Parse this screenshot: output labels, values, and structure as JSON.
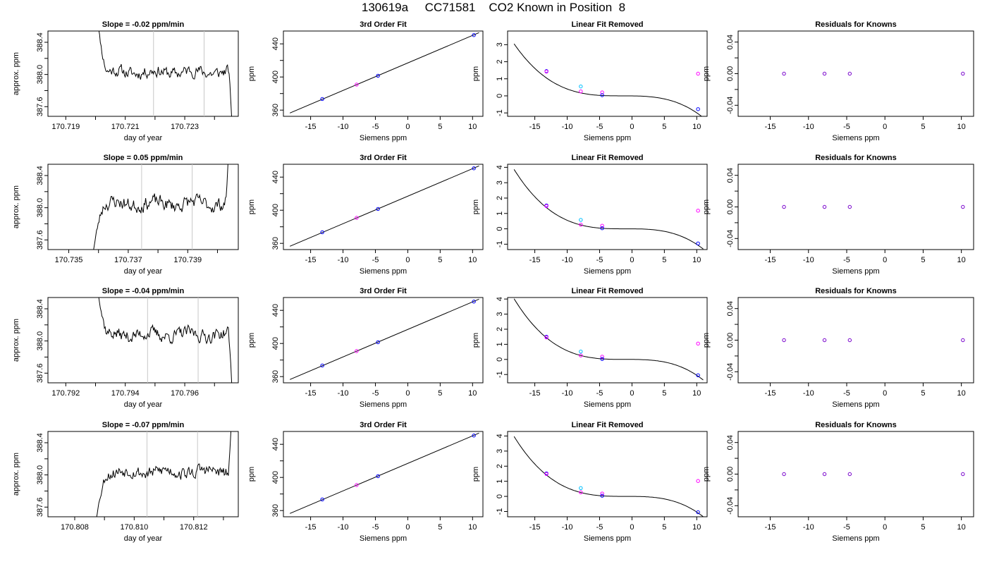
{
  "page": {
    "title": "130619a     CC71581    CO2 Known in Position  8"
  },
  "colors": {
    "line": "#000000",
    "vline": "#c8c8c8",
    "point_blue": "#0000ff",
    "point_magenta": "#ff00ff",
    "point_cyan": "#00bfff",
    "point_purple": "#7700cc"
  },
  "chart_data": [
    {
      "type": "line",
      "row": 0,
      "col": 0,
      "title": "Slope =  -0.02  ppm/min",
      "xlabel": "day of year",
      "ylabel": "approx. ppm",
      "xlim": [
        170.7184,
        170.7248
      ],
      "ylim": [
        387.48,
        388.54
      ],
      "xticks": [
        170.719,
        170.72,
        170.721,
        170.722,
        170.723,
        170.724
      ],
      "xticklabels": [
        "170.719",
        "",
        "170.721",
        "",
        "170.723",
        ""
      ],
      "yticks": [
        387.6,
        387.8,
        388.0,
        388.2,
        388.4
      ],
      "yticklabels": [
        "387.6",
        "",
        "388.0",
        "",
        "388.4"
      ],
      "vlines": [
        170.72195,
        170.72365
      ],
      "trace": {
        "x_start": 170.72,
        "x_end": 170.7246,
        "start_y": 388.9,
        "settle_y": 388.03,
        "end_y": 387.3,
        "seed": 11,
        "amp": 0.055
      }
    },
    {
      "type": "line",
      "row": 1,
      "col": 0,
      "title": "Slope =  0.05  ppm/min",
      "xlabel": "day of year",
      "ylabel": "approx. ppm",
      "xlim": [
        170.7343,
        170.7407
      ],
      "ylim": [
        387.48,
        388.54
      ],
      "xticks": [
        170.735,
        170.736,
        170.737,
        170.738,
        170.739,
        170.74
      ],
      "xticklabels": [
        "170.735",
        "",
        "170.737",
        "",
        "170.739",
        ""
      ],
      "yticks": [
        387.6,
        387.8,
        388.0,
        388.2,
        388.4
      ],
      "yticklabels": [
        "387.6",
        "",
        "388.0",
        "",
        "388.4"
      ],
      "vlines": [
        170.73745,
        170.73915
      ],
      "trace": {
        "x_start": 170.7358,
        "x_end": 170.7404,
        "start_y": 387.4,
        "settle_y": 388.05,
        "end_y": 388.9,
        "seed": 23,
        "amp": 0.065
      }
    },
    {
      "type": "line",
      "row": 2,
      "col": 0,
      "title": "Slope =  -0.04  ppm/min",
      "xlabel": "day of year",
      "ylabel": "approx. ppm",
      "xlim": [
        170.7914,
        170.7978
      ],
      "ylim": [
        387.48,
        388.54
      ],
      "xticks": [
        170.792,
        170.793,
        170.794,
        170.795,
        170.796,
        170.797
      ],
      "xticklabels": [
        "170.792",
        "",
        "170.794",
        "",
        "170.796",
        ""
      ],
      "yticks": [
        387.6,
        387.8,
        388.0,
        388.2,
        388.4
      ],
      "yticklabels": [
        "387.6",
        "",
        "388.0",
        "",
        "388.4"
      ],
      "vlines": [
        170.79475,
        170.79645
      ],
      "trace": {
        "x_start": 170.793,
        "x_end": 170.7976,
        "start_y": 388.9,
        "settle_y": 388.08,
        "end_y": 387.3,
        "seed": 37,
        "amp": 0.06
      }
    },
    {
      "type": "line",
      "row": 3,
      "col": 0,
      "title": "Slope =  -0.07  ppm/min",
      "xlabel": "day of year",
      "ylabel": "approx. ppm",
      "xlim": [
        170.8071,
        170.8135
      ],
      "ylim": [
        387.48,
        388.54
      ],
      "xticks": [
        170.808,
        170.809,
        170.81,
        170.811,
        170.812,
        170.813
      ],
      "xticklabels": [
        "170.808",
        "",
        "170.810",
        "",
        "170.812",
        ""
      ],
      "yticks": [
        387.6,
        387.8,
        388.0,
        388.2,
        388.4
      ],
      "yticklabels": [
        "387.6",
        "",
        "388.0",
        "",
        "388.4"
      ],
      "vlines": [
        170.81043,
        170.81213
      ],
      "trace": {
        "x_start": 170.8087,
        "x_end": 170.8133,
        "start_y": 387.4,
        "settle_y": 388.04,
        "end_y": 388.9,
        "seed": 53,
        "amp": 0.06
      }
    },
    {
      "type": "scatter",
      "row": 0,
      "col": 1,
      "title": "3rd Order Fit",
      "xlabel": "Siemens ppm",
      "ylabel": "ppm",
      "xlim": [
        -19.2,
        11.6
      ],
      "ylim": [
        352.5,
        455.5
      ],
      "xticks": [
        -15,
        -10,
        -5,
        0,
        5,
        10
      ],
      "xticklabels": [
        "-15",
        "-10",
        "-5",
        "0",
        "5",
        "10"
      ],
      "yticks": [
        360,
        380,
        400,
        420,
        440
      ],
      "yticklabels": [
        "360",
        "",
        "400",
        "",
        "440"
      ],
      "curve": {
        "x": [
          -18.2,
          11.0
        ],
        "y": [
          356.5,
          453.5
        ]
      },
      "points": [
        {
          "x": -13.2,
          "y": 373.4,
          "color": "blue"
        },
        {
          "x": -7.9,
          "y": 390.8,
          "color": "magenta"
        },
        {
          "x": -4.6,
          "y": 401.5,
          "color": "blue"
        },
        {
          "x": 10.2,
          "y": 450.6,
          "color": "blue"
        }
      ]
    },
    {
      "type": "scatter",
      "row": 1,
      "col": 1,
      "title": "3rd Order Fit",
      "xlabel": "Siemens ppm",
      "ylabel": "ppm",
      "xlim": [
        -19.2,
        11.6
      ],
      "ylim": [
        352.5,
        455.5
      ],
      "xticks": [
        -15,
        -10,
        -5,
        0,
        5,
        10
      ],
      "xticklabels": [
        "-15",
        "-10",
        "-5",
        "0",
        "5",
        "10"
      ],
      "yticks": [
        360,
        380,
        400,
        420,
        440
      ],
      "yticklabels": [
        "360",
        "",
        "400",
        "",
        "440"
      ],
      "curve": {
        "x": [
          -18.2,
          11.0
        ],
        "y": [
          356.5,
          453.5
        ]
      },
      "points": [
        {
          "x": -13.2,
          "y": 373.4,
          "color": "blue"
        },
        {
          "x": -7.9,
          "y": 390.8,
          "color": "magenta"
        },
        {
          "x": -4.6,
          "y": 401.5,
          "color": "blue"
        },
        {
          "x": 10.2,
          "y": 450.6,
          "color": "blue"
        }
      ]
    },
    {
      "type": "scatter",
      "row": 2,
      "col": 1,
      "title": "3rd Order Fit",
      "xlabel": "Siemens ppm",
      "ylabel": "ppm",
      "xlim": [
        -19.2,
        11.6
      ],
      "ylim": [
        352.5,
        455.5
      ],
      "xticks": [
        -15,
        -10,
        -5,
        0,
        5,
        10
      ],
      "xticklabels": [
        "-15",
        "-10",
        "-5",
        "0",
        "5",
        "10"
      ],
      "yticks": [
        360,
        380,
        400,
        420,
        440
      ],
      "yticklabels": [
        "360",
        "",
        "400",
        "",
        "440"
      ],
      "curve": {
        "x": [
          -18.2,
          11.0
        ],
        "y": [
          356.5,
          453.5
        ]
      },
      "points": [
        {
          "x": -13.2,
          "y": 373.4,
          "color": "blue"
        },
        {
          "x": -7.9,
          "y": 390.8,
          "color": "magenta"
        },
        {
          "x": -4.6,
          "y": 401.5,
          "color": "blue"
        },
        {
          "x": 10.2,
          "y": 450.6,
          "color": "blue"
        }
      ]
    },
    {
      "type": "scatter",
      "row": 3,
      "col": 1,
      "title": "3rd Order Fit",
      "xlabel": "Siemens ppm",
      "ylabel": "ppm",
      "xlim": [
        -19.2,
        11.6
      ],
      "ylim": [
        352.5,
        455.5
      ],
      "xticks": [
        -15,
        -10,
        -5,
        0,
        5,
        10
      ],
      "xticklabels": [
        "-15",
        "-10",
        "-5",
        "0",
        "5",
        "10"
      ],
      "yticks": [
        360,
        380,
        400,
        420,
        440
      ],
      "yticklabels": [
        "360",
        "",
        "400",
        "",
        "440"
      ],
      "curve": {
        "x": [
          -18.2,
          11.0
        ],
        "y": [
          356.5,
          453.5
        ]
      },
      "points": [
        {
          "x": -13.2,
          "y": 373.4,
          "color": "blue"
        },
        {
          "x": -7.9,
          "y": 390.8,
          "color": "magenta"
        },
        {
          "x": -4.6,
          "y": 401.5,
          "color": "blue"
        },
        {
          "x": 10.2,
          "y": 450.6,
          "color": "blue"
        }
      ]
    },
    {
      "type": "scatter",
      "row": 0,
      "col": 2,
      "title": "Linear Fit Removed",
      "xlabel": "Siemens ppm",
      "ylabel": "ppm",
      "xlim": [
        -19.2,
        11.6
      ],
      "ylim": [
        -1.2,
        3.8
      ],
      "xticks": [
        -15,
        -10,
        -5,
        0,
        5,
        10
      ],
      "xticklabels": [
        "-15",
        "-10",
        "-5",
        "0",
        "5",
        "10"
      ],
      "yticks": [
        -1,
        0,
        1,
        2,
        3
      ],
      "yticklabels": [
        "-1",
        "0",
        "1",
        "2",
        "3"
      ],
      "cubic": {
        "k": -0.000655,
        "x0": -1.5,
        "c": 0.0,
        "x_range": [
          -18.2,
          11.0
        ]
      },
      "points": [
        {
          "x": -13.2,
          "y": 1.45,
          "color": "blue"
        },
        {
          "x": -13.2,
          "y": 1.42,
          "color": "magenta"
        },
        {
          "x": -7.9,
          "y": 0.55,
          "color": "cyan"
        },
        {
          "x": -7.9,
          "y": 0.26,
          "color": "magenta"
        },
        {
          "x": -4.6,
          "y": 0.2,
          "color": "magenta"
        },
        {
          "x": -4.6,
          "y": 0.04,
          "color": "blue"
        },
        {
          "x": 10.2,
          "y": 1.3,
          "color": "magenta"
        },
        {
          "x": 10.2,
          "y": -0.78,
          "color": "blue"
        }
      ]
    },
    {
      "type": "scatter",
      "row": 1,
      "col": 2,
      "title": "Linear Fit Removed",
      "xlabel": "Siemens ppm",
      "ylabel": "ppm",
      "xlim": [
        -19.2,
        11.6
      ],
      "ylim": [
        -1.35,
        4.2
      ],
      "xticks": [
        -15,
        -10,
        -5,
        0,
        5,
        10
      ],
      "xticklabels": [
        "-15",
        "-10",
        "-5",
        "0",
        "5",
        "10"
      ],
      "yticks": [
        -1,
        0,
        1,
        2,
        3,
        4
      ],
      "yticklabels": [
        "-1",
        "0",
        "1",
        "2",
        "3",
        "4"
      ],
      "cubic": {
        "k": -0.00076,
        "x0": -1.0,
        "c": 0.0,
        "x_range": [
          -18.2,
          11.0
        ]
      },
      "points": [
        {
          "x": -13.2,
          "y": 1.52,
          "color": "blue"
        },
        {
          "x": -13.2,
          "y": 1.48,
          "color": "magenta"
        },
        {
          "x": -7.9,
          "y": 0.58,
          "color": "cyan"
        },
        {
          "x": -7.9,
          "y": 0.27,
          "color": "magenta"
        },
        {
          "x": -4.6,
          "y": 0.2,
          "color": "magenta"
        },
        {
          "x": -4.6,
          "y": 0.04,
          "color": "blue"
        },
        {
          "x": 10.2,
          "y": 1.18,
          "color": "magenta"
        },
        {
          "x": 10.2,
          "y": -0.95,
          "color": "blue"
        }
      ]
    },
    {
      "type": "scatter",
      "row": 2,
      "col": 2,
      "title": "Linear Fit Removed",
      "xlabel": "Siemens ppm",
      "ylabel": "ppm",
      "xlim": [
        -19.2,
        11.6
      ],
      "ylim": [
        -1.55,
        4.1
      ],
      "xticks": [
        -15,
        -10,
        -5,
        0,
        5,
        10
      ],
      "xticklabels": [
        "-15",
        "-10",
        "-5",
        "0",
        "5",
        "10"
      ],
      "yticks": [
        -1,
        0,
        1,
        2,
        3,
        4
      ],
      "yticklabels": [
        "-1",
        "0",
        "1",
        "2",
        "3",
        "4"
      ],
      "cubic": {
        "k": -0.00079,
        "x0": -1.0,
        "c": 0.0,
        "x_range": [
          -18.2,
          11.0
        ]
      },
      "points": [
        {
          "x": -13.2,
          "y": 1.5,
          "color": "blue"
        },
        {
          "x": -13.2,
          "y": 1.46,
          "color": "magenta"
        },
        {
          "x": -7.9,
          "y": 0.52,
          "color": "cyan"
        },
        {
          "x": -7.9,
          "y": 0.26,
          "color": "magenta"
        },
        {
          "x": -4.6,
          "y": 0.18,
          "color": "magenta"
        },
        {
          "x": -4.6,
          "y": 0.03,
          "color": "blue"
        },
        {
          "x": 10.2,
          "y": 1.05,
          "color": "magenta"
        },
        {
          "x": 10.2,
          "y": -1.05,
          "color": "blue"
        }
      ]
    },
    {
      "type": "scatter",
      "row": 3,
      "col": 2,
      "title": "Linear Fit Removed",
      "xlabel": "Siemens ppm",
      "ylabel": "ppm",
      "xlim": [
        -19.2,
        11.6
      ],
      "ylim": [
        -1.35,
        4.3
      ],
      "xticks": [
        -15,
        -10,
        -5,
        0,
        5,
        10
      ],
      "xticklabels": [
        "-15",
        "-10",
        "-5",
        "0",
        "5",
        "10"
      ],
      "yticks": [
        -1,
        0,
        1,
        2,
        3,
        4
      ],
      "yticklabels": [
        "-1",
        "0",
        "1",
        "2",
        "3",
        "4"
      ],
      "cubic": {
        "k": -0.00078,
        "x0": -1.0,
        "c": 0.0,
        "x_range": [
          -18.2,
          11.0
        ]
      },
      "points": [
        {
          "x": -13.2,
          "y": 1.52,
          "color": "blue"
        },
        {
          "x": -13.2,
          "y": 1.48,
          "color": "magenta"
        },
        {
          "x": -7.9,
          "y": 0.55,
          "color": "cyan"
        },
        {
          "x": -7.9,
          "y": 0.27,
          "color": "magenta"
        },
        {
          "x": -4.6,
          "y": 0.19,
          "color": "magenta"
        },
        {
          "x": -4.6,
          "y": 0.04,
          "color": "blue"
        },
        {
          "x": 10.2,
          "y": 1.02,
          "color": "magenta"
        },
        {
          "x": 10.2,
          "y": -1.05,
          "color": "blue"
        }
      ]
    },
    {
      "type": "scatter",
      "row": 0,
      "col": 3,
      "title": "Residuals for Knowns",
      "xlabel": "Siemens ppm",
      "ylabel": "ppm",
      "xlim": [
        -19.2,
        11.6
      ],
      "ylim": [
        -0.054,
        0.054
      ],
      "xticks": [
        -15,
        -10,
        -5,
        0,
        5,
        10
      ],
      "xticklabels": [
        "-15",
        "-10",
        "-5",
        "0",
        "5",
        "10"
      ],
      "yticks": [
        -0.04,
        -0.02,
        0.0,
        0.02,
        0.04
      ],
      "yticklabels": [
        "-0.04",
        "",
        "0.00",
        "",
        "0.04"
      ],
      "points": [
        {
          "x": -13.2,
          "y": 0.0,
          "color": "purple"
        },
        {
          "x": -7.9,
          "y": 0.0,
          "color": "purple"
        },
        {
          "x": -4.6,
          "y": 0.0,
          "color": "purple"
        },
        {
          "x": 10.2,
          "y": 0.0,
          "color": "purple"
        }
      ]
    },
    {
      "type": "scatter",
      "row": 1,
      "col": 3,
      "title": "Residuals for Knowns",
      "xlabel": "Siemens ppm",
      "ylabel": "ppm",
      "xlim": [
        -19.2,
        11.6
      ],
      "ylim": [
        -0.054,
        0.054
      ],
      "xticks": [
        -15,
        -10,
        -5,
        0,
        5,
        10
      ],
      "xticklabels": [
        "-15",
        "-10",
        "-5",
        "0",
        "5",
        "10"
      ],
      "yticks": [
        -0.04,
        -0.02,
        0.0,
        0.02,
        0.04
      ],
      "yticklabels": [
        "-0.04",
        "",
        "0.00",
        "",
        "0.04"
      ],
      "points": [
        {
          "x": -13.2,
          "y": 0.0,
          "color": "purple"
        },
        {
          "x": -7.9,
          "y": 0.0,
          "color": "purple"
        },
        {
          "x": -4.6,
          "y": 0.0,
          "color": "purple"
        },
        {
          "x": 10.2,
          "y": 0.0,
          "color": "purple"
        }
      ]
    },
    {
      "type": "scatter",
      "row": 2,
      "col": 3,
      "title": "Residuals for Knowns",
      "xlabel": "Siemens ppm",
      "ylabel": "ppm",
      "xlim": [
        -19.2,
        11.6
      ],
      "ylim": [
        -0.054,
        0.054
      ],
      "xticks": [
        -15,
        -10,
        -5,
        0,
        5,
        10
      ],
      "xticklabels": [
        "-15",
        "-10",
        "-5",
        "0",
        "5",
        "10"
      ],
      "yticks": [
        -0.04,
        -0.02,
        0.0,
        0.02,
        0.04
      ],
      "yticklabels": [
        "-0.04",
        "",
        "0.00",
        "",
        "0.04"
      ],
      "points": [
        {
          "x": -13.2,
          "y": 0.0,
          "color": "purple"
        },
        {
          "x": -7.9,
          "y": 0.0,
          "color": "purple"
        },
        {
          "x": -4.6,
          "y": 0.0,
          "color": "purple"
        },
        {
          "x": 10.2,
          "y": 0.0,
          "color": "purple"
        }
      ]
    },
    {
      "type": "scatter",
      "row": 3,
      "col": 3,
      "title": "Residuals for Knowns",
      "xlabel": "Siemens ppm",
      "ylabel": "ppm",
      "xlim": [
        -19.2,
        11.6
      ],
      "ylim": [
        -0.054,
        0.054
      ],
      "xticks": [
        -15,
        -10,
        -5,
        0,
        5,
        10
      ],
      "xticklabels": [
        "-15",
        "-10",
        "-5",
        "0",
        "5",
        "10"
      ],
      "yticks": [
        -0.04,
        -0.02,
        0.0,
        0.02,
        0.04
      ],
      "yticklabels": [
        "-0.04",
        "",
        "0.00",
        "",
        "0.04"
      ],
      "points": [
        {
          "x": -13.2,
          "y": 0.0,
          "color": "purple"
        },
        {
          "x": -7.9,
          "y": 0.0,
          "color": "purple"
        },
        {
          "x": -4.6,
          "y": 0.0,
          "color": "purple"
        },
        {
          "x": 10.2,
          "y": 0.0,
          "color": "purple"
        }
      ]
    }
  ]
}
